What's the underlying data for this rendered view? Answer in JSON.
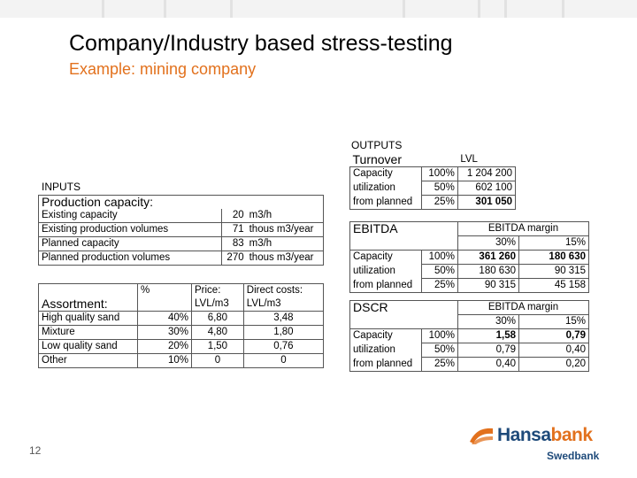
{
  "header": {
    "title": "Company/Industry based stress-testing",
    "subtitle": "Example: mining company"
  },
  "inputs": {
    "label": "INPUTS",
    "production": {
      "heading": "Production capacity:",
      "rows": [
        {
          "label": "Existing capacity",
          "value": "20",
          "unit": "m3/h"
        },
        {
          "label": "Existing production volumes",
          "value": "71",
          "unit": "thous m3/year"
        },
        {
          "label": "Planned capacity",
          "value": "83",
          "unit": "m3/h"
        },
        {
          "label": "Planned production volumes",
          "value": "270",
          "unit": "thous m3/year"
        }
      ]
    },
    "assortment": {
      "heading": "Assortment:",
      "col_pct": "%",
      "col_price": "Price:",
      "col_price_unit": "LVL/m3",
      "col_cost": "Direct costs:",
      "col_cost_unit": "LVL/m3",
      "rows": [
        {
          "label": "High quality sand",
          "pct": "40%",
          "price": "6,80",
          "cost": "3,48"
        },
        {
          "label": "Mixture",
          "pct": "30%",
          "price": "4,80",
          "cost": "1,80"
        },
        {
          "label": "Low quality sand",
          "pct": "20%",
          "price": "1,50",
          "cost": "0,76"
        },
        {
          "label": "Other",
          "pct": "10%",
          "price": "0",
          "cost": "0"
        }
      ]
    }
  },
  "outputs": {
    "label": "OUTPUTS",
    "turnover": {
      "heading": "Turnover",
      "currency": "LVL",
      "rows": [
        {
          "label": "Capacity",
          "pct": "100%",
          "value": "1 204 200"
        },
        {
          "label": "utilization",
          "pct": "50%",
          "value": "602 100"
        },
        {
          "label": "from planned",
          "pct": "25%",
          "value": "301 050"
        }
      ]
    },
    "ebitda": {
      "heading": "EBITDA",
      "margin_label": "EBITDA margin",
      "margin_cols": [
        "30%",
        "15%"
      ],
      "rows": [
        {
          "label": "Capacity",
          "pct": "100%",
          "v1": "361 260",
          "v2": "180 630"
        },
        {
          "label": "utilization",
          "pct": "50%",
          "v1": "180 630",
          "v2": "90 315"
        },
        {
          "label": "from planned",
          "pct": "25%",
          "v1": "90 315",
          "v2": "45 158"
        }
      ]
    },
    "dscr": {
      "heading": "DSCR",
      "margin_label": "EBITDA margin",
      "margin_cols": [
        "30%",
        "15%"
      ],
      "rows": [
        {
          "label": "Capacity",
          "pct": "100%",
          "v1": "1,58",
          "v2": "0,79"
        },
        {
          "label": "utilization",
          "pct": "50%",
          "v1": "0,79",
          "v2": "0,40"
        },
        {
          "label": "from planned",
          "pct": "25%",
          "v1": "0,40",
          "v2": "0,20"
        }
      ]
    }
  },
  "footer": {
    "page_number": "12",
    "logo_text_main": "Hansa",
    "logo_text_accent": "bank",
    "logo_sub": "Swedbank"
  },
  "colors": {
    "title": "#000000",
    "subtitle": "#e2711d",
    "logo_blue": "#1e4a7a",
    "logo_orange": "#e2711d"
  }
}
